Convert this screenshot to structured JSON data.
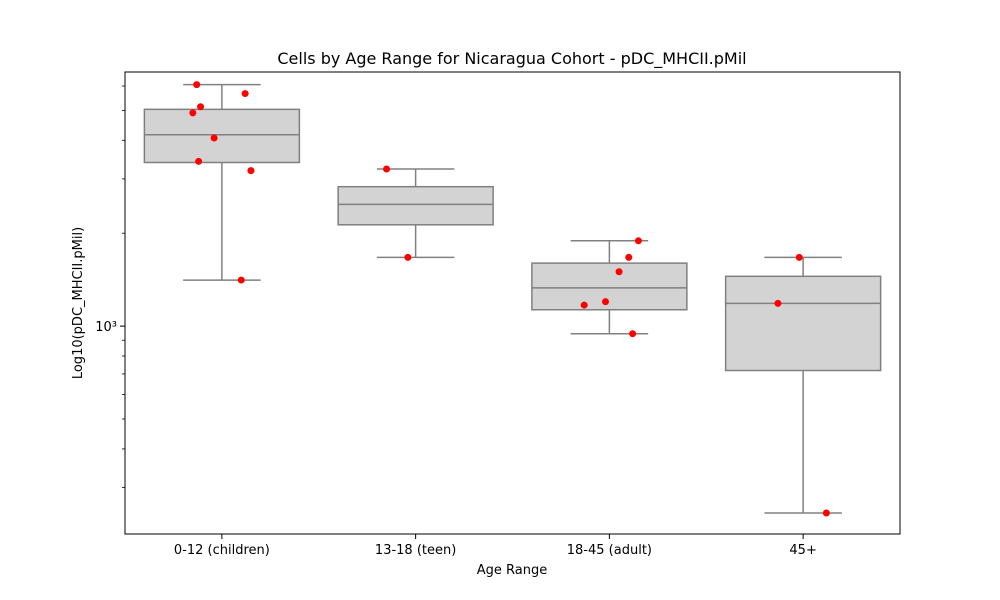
{
  "chart_data": {
    "type": "box",
    "title": "Cells by Age Range for Nicaragua Cohort - pDC_MHCII.pMil",
    "xlabel": "Age Range",
    "ylabel": "Log10(pDC_MHCII.pMil)",
    "y_scale": "log",
    "ylim": [
      212,
      6660
    ],
    "y_ticks": [
      {
        "value": 1000,
        "label": "10³"
      }
    ],
    "grid": false,
    "colors": {
      "box_fill": "#d3d3d3",
      "box_line": "#808080",
      "points": "#ff0000"
    },
    "categories": [
      "0-12 (children)",
      "13-18 (teen)",
      "18-45 (adult)",
      "45+"
    ],
    "boxes": [
      {
        "category": "0-12 (children)",
        "whisker_low": 1410,
        "q1": 3390,
        "median": 4170,
        "q3": 5040,
        "whisker_high": 6060
      },
      {
        "category": "13-18 (teen)",
        "whisker_low": 1670,
        "q1": 2130,
        "median": 2480,
        "q3": 2830,
        "whisker_high": 3230
      },
      {
        "category": "18-45 (adult)",
        "whisker_low": 945,
        "q1": 1130,
        "median": 1330,
        "q3": 1600,
        "whisker_high": 1890
      },
      {
        "category": "45+",
        "whisker_low": 248,
        "q1": 718,
        "median": 1185,
        "q3": 1450,
        "whisker_high": 1670
      }
    ],
    "points": [
      {
        "category": "0-12 (children)",
        "values": [
          6060,
          5670,
          5140,
          4910,
          4070,
          3420,
          3190,
          1410
        ]
      },
      {
        "category": "13-18 (teen)",
        "values": [
          3230,
          1670
        ]
      },
      {
        "category": "18-45 (adult)",
        "values": [
          1890,
          1670,
          1500,
          1200,
          1170,
          945
        ]
      },
      {
        "category": "45+",
        "values": [
          1670,
          1185,
          248
        ]
      }
    ]
  }
}
